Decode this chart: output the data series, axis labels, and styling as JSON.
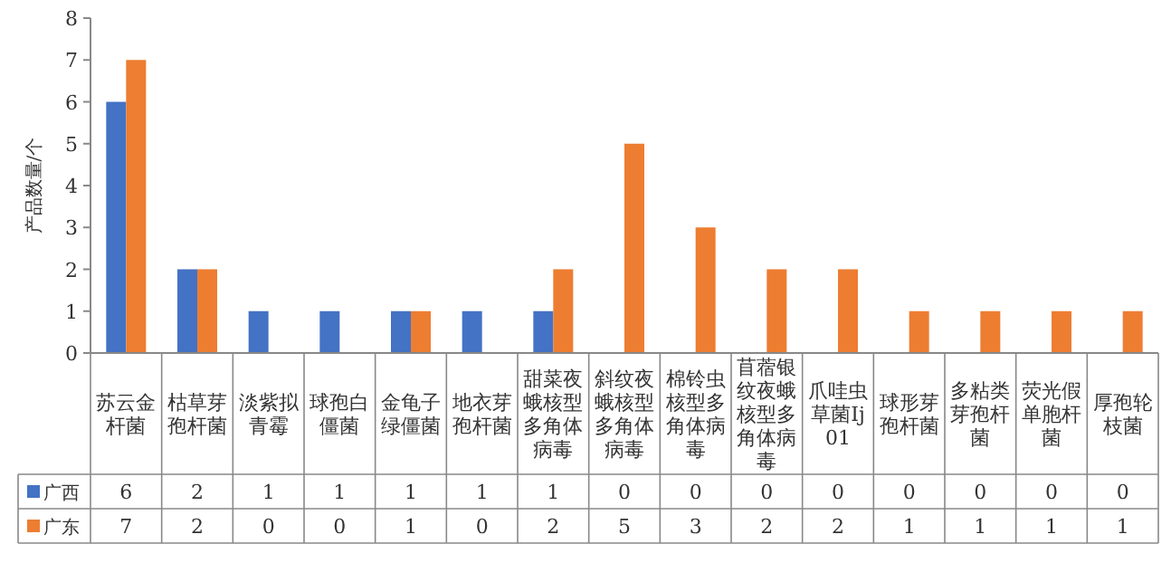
{
  "chart_data": {
    "type": "bar",
    "ylabel": "产品数量/个",
    "categories": [
      "苏云金杆菌",
      "枯草芽孢杆菌",
      "淡紫拟青霉",
      "球孢白僵菌",
      "金龟子绿僵菌",
      "地衣芽孢杆菌",
      "甜菜夜蛾核型多角体病毒",
      "斜纹夜蛾核型多角体病毒",
      "棉铃虫核型多角体病毒",
      "苜蓿银纹夜蛾核型多角体病毒",
      "爪哇虫草菌Ij01",
      "球形芽孢杆菌",
      "多粘类芽孢杆菌",
      "荧光假单胞杆菌",
      "厚孢轮枝菌"
    ],
    "series": [
      {
        "name": "广西",
        "color": "#4472c4",
        "values": [
          6,
          2,
          1,
          1,
          1,
          1,
          1,
          0,
          0,
          0,
          0,
          0,
          0,
          0,
          0
        ]
      },
      {
        "name": "广东",
        "color": "#ed7d31",
        "values": [
          7,
          2,
          0,
          0,
          1,
          0,
          2,
          5,
          3,
          2,
          2,
          1,
          1,
          1,
          1
        ]
      }
    ],
    "ylim": [
      0,
      8
    ],
    "yticks": [
      0,
      1,
      2,
      3,
      4,
      5,
      6,
      7,
      8
    ],
    "data_labels": true,
    "legend": "bottom"
  }
}
